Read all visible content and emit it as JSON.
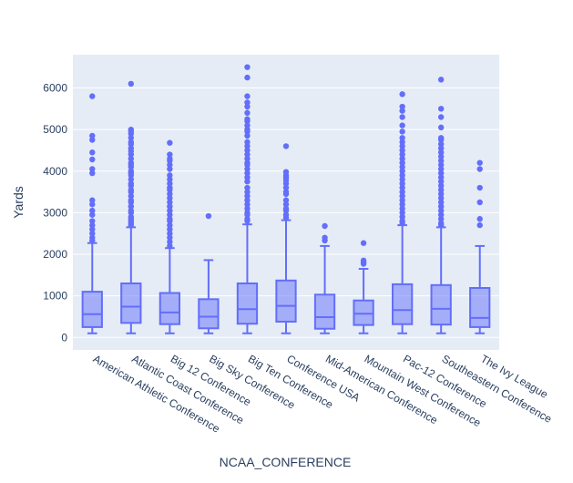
{
  "chart_data": {
    "type": "box",
    "title": "",
    "xlabel": "NCAA_CONFERENCE",
    "ylabel": "Yards",
    "ylim": [
      -300,
      6800
    ],
    "yticks": [
      0,
      1000,
      2000,
      3000,
      4000,
      5000,
      6000
    ],
    "ytick_labels": [
      "0",
      "1000",
      "2000",
      "3000",
      "4000",
      "5000",
      "6000"
    ],
    "grid": true,
    "legend": "none",
    "colors": {
      "box_line": "#636efa",
      "box_fill": "rgba(99,110,250,0.5)",
      "plot_bg": "#e5ecf6",
      "grid": "#ffffff"
    },
    "categories": [
      "American Athletic Conference",
      "Atlantic Coast Conference",
      "Big 12 Conference",
      "Big Sky Conference",
      "Big Ten Conference",
      "Conference USA",
      "Mid-American Conference",
      "Mountain West Conference",
      "Pac-12 Conference",
      "Southeastern Conference",
      "The Ivy League"
    ],
    "boxes": [
      {
        "min": 100,
        "q1": 250,
        "median": 560,
        "q3": 1100,
        "max": 2270,
        "outliers": [
          5800,
          4850,
          4750,
          4450,
          4280,
          4050,
          3950,
          3300,
          3200,
          3050,
          2950,
          2800,
          2700,
          2600,
          2500,
          2400,
          2330
        ]
      },
      {
        "min": 100,
        "q1": 350,
        "median": 740,
        "q3": 1300,
        "max": 2650,
        "outliers": [
          6100,
          5000,
          4950,
          4900,
          4800,
          4700,
          4650,
          4550,
          4480,
          4400,
          4300,
          4200,
          4150,
          4100,
          4000,
          3950,
          3900,
          3800,
          3700,
          3650,
          3550,
          3500,
          3400,
          3300,
          3250,
          3150,
          3050,
          3000,
          2900,
          2850,
          2800,
          2750,
          2700
        ]
      },
      {
        "min": 100,
        "q1": 320,
        "median": 600,
        "q3": 1070,
        "max": 2150,
        "outliers": [
          4680,
          4400,
          4300,
          4250,
          4150,
          4050,
          3900,
          3800,
          3700,
          3600,
          3550,
          3450,
          3350,
          3250,
          3150,
          3050,
          2950,
          2850,
          2800,
          2700,
          2600,
          2500,
          2400,
          2300,
          2200
        ]
      },
      {
        "min": 100,
        "q1": 220,
        "median": 500,
        "q3": 920,
        "max": 1860,
        "outliers": [
          2920
        ]
      },
      {
        "min": 100,
        "q1": 330,
        "median": 680,
        "q3": 1300,
        "max": 2720,
        "outliers": [
          6500,
          6250,
          5800,
          5650,
          5550,
          5400,
          5250,
          5200,
          5100,
          5000,
          4950,
          4850,
          4700,
          4600,
          4500,
          4400,
          4300,
          4200,
          4150,
          4050,
          3950,
          3850,
          3750,
          3600,
          3500,
          3400,
          3300,
          3200,
          3100,
          3000,
          2950,
          2850,
          2800
        ]
      },
      {
        "min": 100,
        "q1": 380,
        "median": 760,
        "q3": 1370,
        "max": 2820,
        "outliers": [
          4600,
          3980,
          3900,
          3850,
          3780,
          3700,
          3600,
          3500,
          3450,
          3300,
          3200,
          3100,
          3050,
          2950,
          2880
        ]
      },
      {
        "min": 100,
        "q1": 210,
        "median": 490,
        "q3": 1030,
        "max": 2200,
        "outliers": [
          2680,
          2400,
          2330
        ]
      },
      {
        "min": 100,
        "q1": 300,
        "median": 570,
        "q3": 890,
        "max": 1650,
        "outliers": [
          2270,
          1850,
          1800,
          1770
        ]
      },
      {
        "min": 100,
        "q1": 320,
        "median": 660,
        "q3": 1280,
        "max": 2700,
        "outliers": [
          5850,
          5550,
          5450,
          5300,
          5100,
          4950,
          4800,
          4700,
          4600,
          4500,
          4400,
          4300,
          4200,
          4100,
          4000,
          3900,
          3800,
          3700,
          3600,
          3500,
          3400,
          3300,
          3200,
          3100,
          3000,
          2900,
          2800,
          2750
        ]
      },
      {
        "min": 100,
        "q1": 310,
        "median": 690,
        "q3": 1260,
        "max": 2650,
        "outliers": [
          6200,
          5500,
          5300,
          5050,
          4800,
          4750,
          4650,
          4550,
          4450,
          4350,
          4250,
          4150,
          4050,
          3950,
          3850,
          3750,
          3650,
          3550,
          3450,
          3350,
          3250,
          3150,
          3050,
          2950,
          2850,
          2750,
          2700
        ]
      },
      {
        "min": 100,
        "q1": 250,
        "median": 470,
        "q3": 1190,
        "max": 2200,
        "outliers": [
          4200,
          4050,
          3600,
          3250,
          2850,
          2700
        ]
      }
    ]
  }
}
